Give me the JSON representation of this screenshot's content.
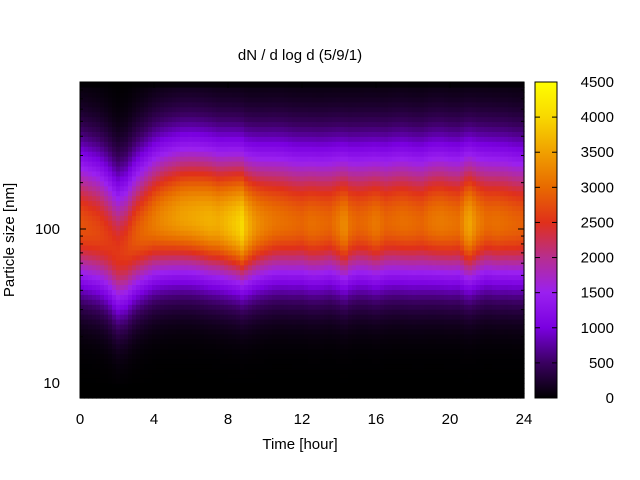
{
  "chart_data": {
    "type": "heatmap",
    "title": "dN / d log d (5/9/1)",
    "xlabel": "Time [hour]",
    "ylabel": "Particle size [nm]",
    "xlim": [
      0,
      24
    ],
    "ylim": [
      8,
      900
    ],
    "y_scale": "log",
    "x_ticks": [
      0,
      4,
      8,
      12,
      16,
      20,
      24
    ],
    "x_tick_labels": [
      "0",
      "4",
      "8",
      "12",
      "16",
      "20",
      "24"
    ],
    "y_ticks": [
      10,
      100
    ],
    "y_tick_labels": [
      "10",
      "100"
    ],
    "colorbar": {
      "range": [
        0,
        4500
      ],
      "ticks": [
        0,
        500,
        1000,
        1500,
        2000,
        2500,
        3000,
        3500,
        4000,
        4500
      ],
      "tick_labels": [
        "0",
        "500",
        "1000",
        "1500",
        "2000",
        "2500",
        "3000",
        "3500",
        "4000",
        "4500"
      ]
    },
    "colormap": [
      "#000000",
      "#3a0060",
      "#7a00e0",
      "#9a20f0",
      "#b72e8f",
      "#e0301a",
      "#e86a00",
      "#f0a000",
      "#f8d800",
      "#ffff00"
    ],
    "grid": false,
    "times": [
      0,
      0.5,
      1,
      1.5,
      2,
      2.5,
      3,
      3.5,
      4,
      4.5,
      5,
      5.5,
      6,
      6.5,
      7,
      7.5,
      8,
      8.5,
      8.8,
      9,
      9.5,
      10,
      10.5,
      11,
      11.5,
      12,
      12.5,
      13,
      13.5,
      14,
      14.3,
      14.6,
      15,
      15.5,
      16,
      16.5,
      17,
      17.5,
      18,
      18.5,
      19,
      19.5,
      20,
      20.5,
      21,
      21.5,
      22,
      22.5,
      23,
      23.5,
      24
    ],
    "mode_diameter_nm": [
      105,
      100,
      95,
      85,
      70,
      75,
      90,
      100,
      110,
      115,
      118,
      120,
      120,
      118,
      115,
      112,
      110,
      108,
      105,
      105,
      108,
      110,
      112,
      112,
      110,
      110,
      108,
      108,
      110,
      108,
      105,
      108,
      110,
      110,
      108,
      110,
      112,
      112,
      110,
      110,
      112,
      112,
      110,
      110,
      108,
      110,
      112,
      110,
      110,
      108,
      108
    ],
    "peak_concentration": [
      2800,
      2750,
      2700,
      2600,
      2550,
      2650,
      2850,
      3000,
      3150,
      3300,
      3400,
      3500,
      3550,
      3600,
      3650,
      3600,
      3750,
      3900,
      4050,
      3700,
      3350,
      3200,
      3100,
      3050,
      3000,
      2950,
      3050,
      3000,
      2950,
      3150,
      3350,
      3050,
      2950,
      3000,
      3150,
      2950,
      3000,
      3050,
      3000,
      2950,
      3100,
      3150,
      3100,
      3050,
      3600,
      3200,
      3000,
      3050,
      3000,
      2950,
      2900
    ]
  }
}
